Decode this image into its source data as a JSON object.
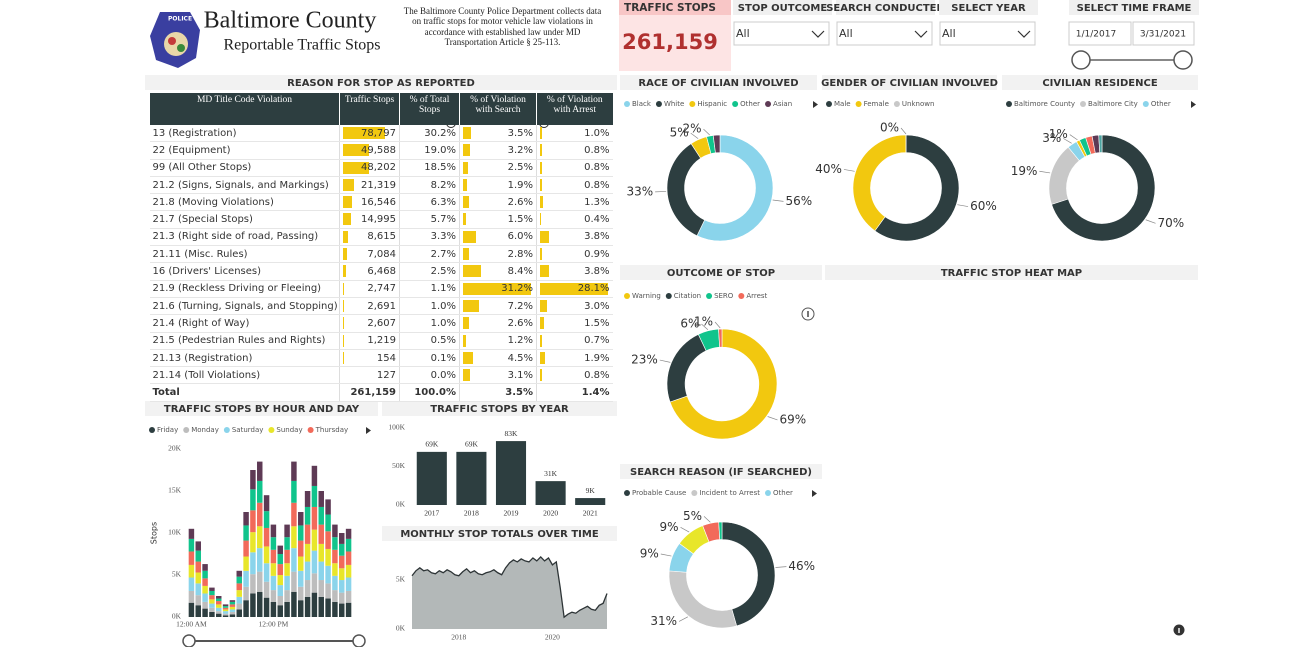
{
  "header": {
    "logo_text": "POLICE",
    "title": "Baltimore County",
    "subtitle": "Reportable Traffic Stops",
    "description": "The Baltimore County Police Department collects data on traffic stops for motor vehicle law violations in accordance with established law under MD Transportation Article § 25-113."
  },
  "kpi": {
    "label": "TRAFFIC STOPS",
    "value": "261,159"
  },
  "filters": [
    {
      "label": "STOP OUTCOME",
      "value": "All"
    },
    {
      "label": "SEARCH CONDUCTED",
      "value": "All"
    },
    {
      "label": "SELECT YEAR",
      "value": "All"
    }
  ],
  "time_frame": {
    "label": "SELECT TIME FRAME",
    "start": "1/1/2017",
    "end": "3/31/2021"
  },
  "table": {
    "title": "REASON FOR STOP AS REPORTED",
    "bar_color": "#f2c80f",
    "columns": [
      "MD Title Code Violation",
      "Traffic Stops",
      "% of Total Stops",
      "% of Violation with Search",
      "% of Violation with Arrest"
    ],
    "violations": [
      "13 (Registration)",
      "22 (Equipment)",
      "99 (All Other Stops)",
      "21.2 (Signs, Signals, and Markings)",
      "21.8 (Moving Violations)",
      "21.7 (Special Stops)",
      "21.3 (Right side of road, Passing)",
      "21.11 (Misc. Rules)",
      "16 (Drivers' Licenses)",
      "21.9 (Reckless Driving or Fleeing)",
      "21.6 (Turning, Signals, and Stopping)",
      "21.4 (Right of Way)",
      "21.5 (Pedestrian Rules and Rights)",
      "21.13 (Registration)",
      "21.14 (Toll Violations)"
    ],
    "stops": [
      78797,
      49588,
      48202,
      21319,
      16546,
      14995,
      8615,
      7084,
      6468,
      2747,
      2691,
      2607,
      1219,
      154,
      127
    ],
    "stops_labels": [
      "78,797",
      "49,588",
      "48,202",
      "21,319",
      "16,546",
      "14,995",
      "8,615",
      "7,084",
      "6,468",
      "2,747",
      "2,691",
      "2,607",
      "1,219",
      "154",
      "127"
    ],
    "pct_total_labels": [
      "30.2%",
      "19.0%",
      "18.5%",
      "8.2%",
      "6.3%",
      "5.7%",
      "3.3%",
      "2.7%",
      "2.5%",
      "1.1%",
      "1.0%",
      "1.0%",
      "0.5%",
      "0.1%",
      "0.0%"
    ],
    "pct_search": [
      3.5,
      3.2,
      2.5,
      1.9,
      2.6,
      1.5,
      6.0,
      2.8,
      8.4,
      31.2,
      7.2,
      2.6,
      1.2,
      4.5,
      3.1
    ],
    "pct_search_labels": [
      "3.5%",
      "3.2%",
      "2.5%",
      "1.9%",
      "2.6%",
      "1.5%",
      "6.0%",
      "2.8%",
      "8.4%",
      "31.2%",
      "7.2%",
      "2.6%",
      "1.2%",
      "4.5%",
      "3.1%"
    ],
    "pct_arrest": [
      1.0,
      0.8,
      0.8,
      0.8,
      1.3,
      0.4,
      3.8,
      0.9,
      3.8,
      28.1,
      3.0,
      1.5,
      0.7,
      1.9,
      0.8
    ],
    "pct_arrest_labels": [
      "1.0%",
      "0.8%",
      "0.8%",
      "0.8%",
      "1.3%",
      "0.4%",
      "3.8%",
      "0.9%",
      "3.8%",
      "28.1%",
      "3.0%",
      "1.5%",
      "0.7%",
      "1.9%",
      "0.8%"
    ],
    "total": [
      "Total",
      "261,159",
      "100.0%",
      "3.5%",
      "1.4%"
    ]
  },
  "chart_data": [
    {
      "type": "stacked_bar",
      "title": "TRAFFIC STOPS BY HOUR AND DAY",
      "y_label": "Stops",
      "categories": [
        "12:00 AM",
        null,
        null,
        null,
        null,
        null,
        null,
        null,
        null,
        null,
        null,
        null,
        "12:00 PM",
        null,
        null,
        null,
        null,
        null,
        null,
        null,
        null,
        null,
        null,
        null
      ],
      "ylim": [
        0,
        20000
      ],
      "yticks": [
        {
          "value": 0,
          "label": "0K"
        },
        {
          "value": 5000,
          "label": "5K"
        },
        {
          "value": 10000,
          "label": "10K"
        },
        {
          "value": 15000,
          "label": "15K"
        },
        {
          "value": 20000,
          "label": "20K"
        }
      ],
      "series": [
        {
          "name": "Friday",
          "color": "#2d3e40",
          "values": [
            1700,
            1400,
            1000,
            600,
            400,
            200,
            300,
            900,
            2000,
            2800,
            3000,
            2300,
            1800,
            1400,
            1800,
            3000,
            2000,
            2400,
            2900,
            2400,
            2200,
            1800,
            1600,
            1700
          ]
        },
        {
          "name": "Monday",
          "color": "#bdbdbd",
          "values": [
            1400,
            1200,
            800,
            500,
            300,
            200,
            300,
            700,
            1600,
            2300,
            2400,
            1900,
            1400,
            1100,
            1400,
            2400,
            1600,
            2000,
            2300,
            2000,
            1800,
            1400,
            1300,
            1400
          ]
        },
        {
          "name": "Saturday",
          "color": "#8ad4eb",
          "values": [
            1600,
            1400,
            1000,
            500,
            400,
            300,
            300,
            800,
            1900,
            2600,
            2800,
            2200,
            1700,
            1300,
            1700,
            2800,
            1900,
            2200,
            2700,
            2200,
            2100,
            1700,
            1500,
            1600
          ]
        },
        {
          "name": "Sunday",
          "color": "#e8e62a",
          "values": [
            1500,
            1300,
            900,
            500,
            400,
            200,
            300,
            800,
            1700,
            2400,
            2600,
            2000,
            1500,
            1200,
            1500,
            2600,
            1700,
            2100,
            2500,
            2100,
            2000,
            1500,
            1400,
            1500
          ]
        },
        {
          "name": "Thursday",
          "color": "#f26a5a",
          "values": [
            1600,
            1300,
            900,
            500,
            400,
            200,
            300,
            800,
            1900,
            2600,
            2800,
            2200,
            1600,
            1300,
            1600,
            2800,
            1900,
            2300,
            2700,
            2300,
            2100,
            1600,
            1500,
            1600
          ]
        },
        {
          "name": null,
          "color": "#10c48c",
          "values": [
            1500,
            1300,
            900,
            500,
            300,
            200,
            300,
            800,
            1800,
            2500,
            2600,
            2000,
            1500,
            1200,
            1500,
            2600,
            1800,
            2100,
            2500,
            2100,
            2000,
            1500,
            1400,
            1500
          ]
        },
        {
          "name": null,
          "color": "#5e3a55",
          "values": [
            1200,
            1100,
            800,
            400,
            300,
            200,
            200,
            700,
            1600,
            2300,
            2300,
            1900,
            1500,
            1000,
            1500,
            2300,
            1600,
            1900,
            2400,
            1900,
            1800,
            1500,
            1300,
            1200
          ]
        }
      ]
    },
    {
      "type": "bar",
      "title": "TRAFFIC STOPS BY YEAR",
      "color": "#2d3e40",
      "categories": [
        "2017",
        "2018",
        "2019",
        "2020",
        "2021"
      ],
      "values": [
        69000,
        69000,
        83000,
        31000,
        9000
      ],
      "value_labels": [
        "69K",
        "69K",
        "83K",
        "31K",
        "9K"
      ],
      "ylim": [
        0,
        100000
      ],
      "yticks": [
        {
          "value": 0,
          "label": "0K"
        },
        {
          "value": 50000,
          "label": "50K"
        },
        {
          "value": 100000,
          "label": "100K"
        }
      ]
    },
    {
      "type": "area",
      "title": "MONTHLY STOP TOTALS OVER TIME",
      "color": "#2d3436",
      "fill": "#b3b8b8",
      "categories": [
        null,
        null,
        null,
        null,
        null,
        null,
        null,
        null,
        null,
        null,
        null,
        null,
        "2018",
        null,
        null,
        null,
        null,
        null,
        null,
        null,
        null,
        null,
        null,
        null,
        null,
        null,
        null,
        null,
        null,
        null,
        null,
        null,
        null,
        null,
        null,
        null,
        "2020",
        null,
        null,
        null,
        null,
        null,
        null,
        null,
        null,
        null,
        null,
        null,
        null,
        null,
        null
      ],
      "values": [
        5400,
        5900,
        6200,
        5900,
        6000,
        5700,
        5600,
        5900,
        5700,
        6000,
        5800,
        5500,
        5400,
        5800,
        6100,
        5700,
        5900,
        5600,
        5500,
        5700,
        5800,
        6000,
        5700,
        5500,
        6200,
        6700,
        7000,
        6800,
        7100,
        6900,
        6800,
        7200,
        6900,
        7300,
        6900,
        7200,
        6500,
        6800,
        4200,
        1200,
        1500,
        1700,
        1600,
        1900,
        2100,
        2300,
        2000,
        1900,
        2400,
        2600,
        3600
      ],
      "ylim": [
        0,
        7500
      ],
      "yticks": [
        {
          "value": 0,
          "label": "0K"
        },
        {
          "value": 5000,
          "label": "5K"
        }
      ]
    },
    {
      "type": "donut",
      "title": "RACE OF CIVILIAN INVOLVED",
      "categories": [
        "Black",
        "White",
        "Hispanic",
        "Other",
        "Asian"
      ],
      "values": [
        56,
        33,
        5,
        2,
        2
      ],
      "value_labels": [
        "56%",
        "33%",
        "5%",
        "2%",
        null
      ],
      "colors": [
        "#8ad4eb",
        "#2d3e40",
        "#f2c80f",
        "#10c48c",
        "#5e3a55"
      ]
    },
    {
      "type": "donut",
      "title": "GENDER OF CIVILIAN INVOLVED",
      "categories": [
        "Male",
        "Female",
        "Unknown"
      ],
      "values": [
        60,
        40,
        0
      ],
      "value_labels": [
        "60%",
        "40%",
        "0%"
      ],
      "colors": [
        "#2d3e40",
        "#f2c80f",
        "#c8c8c8"
      ]
    },
    {
      "type": "donut",
      "title": "CIVILIAN RESIDENCE",
      "categories": [
        "Baltimore County",
        "Baltimore City",
        "Other",
        null,
        null,
        null,
        null,
        null
      ],
      "values": [
        70,
        19,
        3,
        1,
        2,
        2,
        2,
        1
      ],
      "value_labels": [
        "70%",
        "19%",
        "3%",
        "1%",
        null,
        null,
        null,
        null
      ],
      "colors": [
        "#2d3e40",
        "#c8c8c8",
        "#8ad4eb",
        "#f2c80f",
        "#10c48c",
        "#f26a5a",
        "#5e3a55",
        "#4ba3a0"
      ]
    },
    {
      "type": "donut",
      "title": "OUTCOME OF STOP",
      "categories": [
        "Warning",
        "Citation",
        "SERO",
        "Arrest"
      ],
      "values": [
        69,
        23,
        6,
        1
      ],
      "value_labels": [
        "69%",
        "23%",
        "6%",
        "1%"
      ],
      "colors": [
        "#f2c80f",
        "#2d3e40",
        "#10c48c",
        "#f26a5a"
      ]
    },
    {
      "type": "heatmap",
      "title": "TRAFFIC STOP HEAT MAP"
    },
    {
      "type": "donut",
      "title": "SEARCH REASON (IF SEARCHED)",
      "categories": [
        "Probable Cause",
        "Incident to Arrest",
        "Other",
        null,
        null,
        null
      ],
      "values": [
        46,
        31,
        9,
        9,
        5,
        1
      ],
      "value_labels": [
        "46%",
        "31%",
        "9%",
        "9%",
        "5%",
        null
      ],
      "colors": [
        "#2d3e40",
        "#c8c8c8",
        "#8ad4eb",
        "#e8e62a",
        "#f26a5a",
        "#10c48c"
      ]
    }
  ]
}
